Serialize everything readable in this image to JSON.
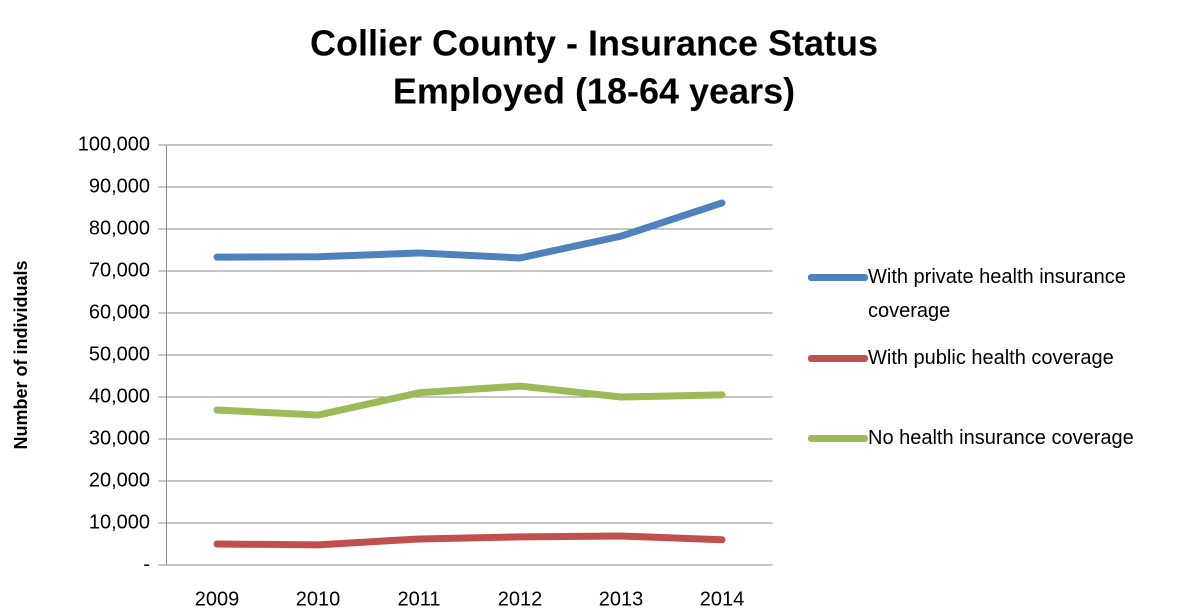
{
  "chart_data": {
    "type": "line",
    "title": "Collier County - Insurance Status",
    "subtitle": "Employed (18-64 years)",
    "y_label": "Number of individuals",
    "categories": [
      "2009",
      "2010",
      "2011",
      "2012",
      "2013",
      "2014"
    ],
    "series": [
      {
        "name": "With private health insurance coverage",
        "color": "#4f81bd",
        "values": [
          73300,
          73400,
          74300,
          73100,
          78300,
          86200
        ]
      },
      {
        "name": "With public health coverage",
        "color": "#c0504d",
        "values": [
          5000,
          4800,
          6200,
          6700,
          6900,
          6000
        ]
      },
      {
        "name": "No health insurance coverage",
        "color": "#9bbb59",
        "values": [
          36900,
          35700,
          41000,
          42600,
          40000,
          40500
        ]
      }
    ],
    "ylim": [
      0,
      100000
    ],
    "yticks": [
      {
        "value": 0,
        "label": "-"
      },
      {
        "value": 10000,
        "label": "10,000"
      },
      {
        "value": 20000,
        "label": "20,000"
      },
      {
        "value": 30000,
        "label": "30,000"
      },
      {
        "value": 40000,
        "label": "40,000"
      },
      {
        "value": 50000,
        "label": "50,000"
      },
      {
        "value": 60000,
        "label": "60,000"
      },
      {
        "value": 70000,
        "label": "70,000"
      },
      {
        "value": 80000,
        "label": "80,000"
      },
      {
        "value": 90000,
        "label": "90,000"
      },
      {
        "value": 100000,
        "label": "100,000"
      }
    ],
    "grid": true,
    "legend": "right"
  }
}
